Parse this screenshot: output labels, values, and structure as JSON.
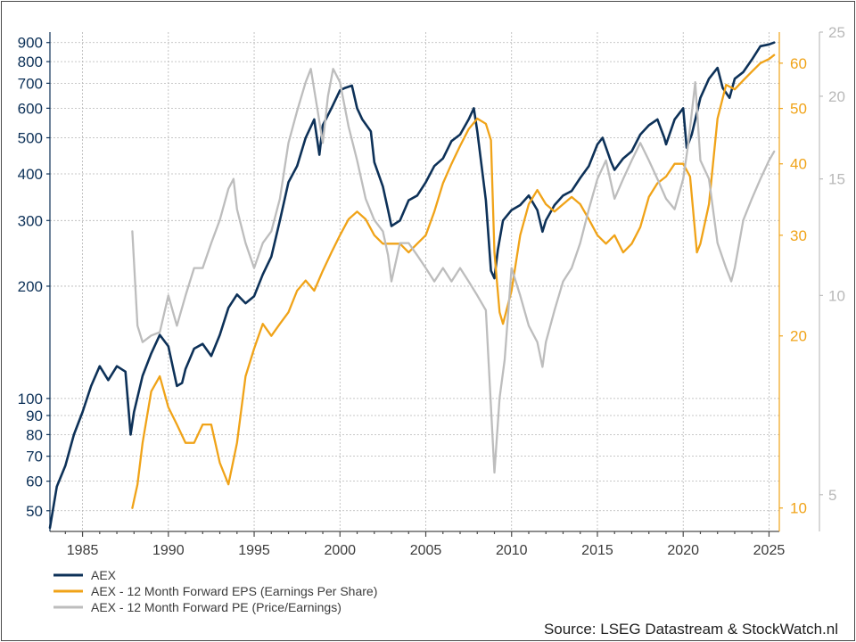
{
  "chart_data": {
    "type": "line",
    "x_ticks": [
      "1985",
      "1990",
      "1995",
      "2000",
      "2005",
      "2010",
      "2015",
      "2020",
      "2025"
    ],
    "x_range": [
      1983.1,
      2025.6
    ],
    "y_left": {
      "scale": "log",
      "range": [
        44,
        960
      ],
      "ticks": [
        "900",
        "800",
        "700",
        "600",
        "500",
        "400",
        "300",
        "200",
        "100",
        "90",
        "80",
        "70",
        "60",
        "50"
      ],
      "color": "#0d3158"
    },
    "y_right_eps": {
      "scale": "log",
      "range": [
        9.1,
        68
      ],
      "ticks": [
        "60",
        "50",
        "40",
        "30",
        "20",
        "10"
      ],
      "color": "#f0a318"
    },
    "y_right_pe": {
      "scale": "log",
      "range": [
        4.4,
        25
      ],
      "ticks": [
        "25",
        "20",
        "15",
        "10",
        "5"
      ],
      "color": "#bdbdbd"
    },
    "grid": true,
    "legend_position": "bottom-left",
    "legend": [
      {
        "label": "AEX",
        "color": "#0d3158"
      },
      {
        "label": "AEX - 12 Month Forward EPS (Earnings Per Share)",
        "color": "#f0a318"
      },
      {
        "label": "AEX - 12 Month Forward PE (Price/Earnings)",
        "color": "#bdbdbd"
      }
    ],
    "source": "Source: LSEG Datastream & StockWatch.nl",
    "series": [
      {
        "name": "AEX",
        "color": "#0d3158",
        "axis": "left",
        "x": [
          1983.1,
          1983.5,
          1984.0,
          1984.5,
          1985.0,
          1985.5,
          1986.0,
          1986.5,
          1987.0,
          1987.5,
          1987.8,
          1988.0,
          1988.5,
          1989.0,
          1989.5,
          1990.0,
          1990.5,
          1990.8,
          1991.0,
          1991.5,
          1992.0,
          1992.5,
          1993.0,
          1993.5,
          1994.0,
          1994.5,
          1995.0,
          1995.5,
          1996.0,
          1996.5,
          1997.0,
          1997.5,
          1998.0,
          1998.5,
          1998.8,
          1999.0,
          1999.5,
          2000.0,
          2000.3,
          2000.7,
          2001.0,
          2001.3,
          2001.8,
          2002.0,
          2002.5,
          2002.8,
          2003.0,
          2003.5,
          2004.0,
          2004.5,
          2005.0,
          2005.5,
          2006.0,
          2006.5,
          2007.0,
          2007.5,
          2007.8,
          2008.0,
          2008.5,
          2008.8,
          2009.0,
          2009.2,
          2009.5,
          2010.0,
          2010.5,
          2011.0,
          2011.5,
          2011.8,
          2012.0,
          2012.5,
          2013.0,
          2013.5,
          2014.0,
          2014.5,
          2015.0,
          2015.3,
          2015.8,
          2016.0,
          2016.5,
          2017.0,
          2017.5,
          2018.0,
          2018.5,
          2018.9,
          2019.0,
          2019.5,
          2020.0,
          2020.2,
          2020.5,
          2021.0,
          2021.5,
          2022.0,
          2022.3,
          2022.7,
          2023.0,
          2023.5,
          2024.0,
          2024.5,
          2025.0,
          2025.3
        ],
        "values": [
          45,
          58,
          66,
          80,
          92,
          108,
          122,
          112,
          122,
          118,
          80,
          92,
          115,
          132,
          148,
          138,
          108,
          110,
          120,
          136,
          140,
          130,
          148,
          175,
          190,
          180,
          188,
          215,
          240,
          300,
          380,
          420,
          500,
          560,
          450,
          540,
          600,
          670,
          680,
          690,
          600,
          560,
          520,
          430,
          370,
          320,
          290,
          300,
          340,
          350,
          380,
          420,
          440,
          490,
          510,
          560,
          600,
          520,
          340,
          220,
          210,
          250,
          300,
          320,
          330,
          350,
          320,
          280,
          300,
          330,
          350,
          360,
          390,
          420,
          480,
          500,
          430,
          410,
          440,
          460,
          510,
          540,
          560,
          500,
          480,
          560,
          600,
          470,
          510,
          640,
          720,
          770,
          680,
          640,
          720,
          750,
          810,
          880,
          890,
          900
        ]
      },
      {
        "name": "AEX - 12 Month Forward EPS (Earnings Per Share)",
        "color": "#f0a318",
        "axis": "right_eps",
        "x": [
          1987.9,
          1988.2,
          1988.5,
          1989.0,
          1989.5,
          1990.0,
          1990.5,
          1991.0,
          1991.5,
          1992.0,
          1992.5,
          1993.0,
          1993.5,
          1994.0,
          1994.5,
          1995.0,
          1995.5,
          1996.0,
          1996.5,
          1997.0,
          1997.5,
          1998.0,
          1998.5,
          1999.0,
          1999.5,
          2000.0,
          2000.5,
          2001.0,
          2001.5,
          2002.0,
          2002.5,
          2003.0,
          2003.5,
          2004.0,
          2004.5,
          2005.0,
          2005.5,
          2006.0,
          2006.5,
          2007.0,
          2007.5,
          2008.0,
          2008.5,
          2008.8,
          2009.0,
          2009.3,
          2009.5,
          2010.0,
          2010.5,
          2011.0,
          2011.5,
          2012.0,
          2012.5,
          2013.0,
          2013.5,
          2014.0,
          2014.5,
          2015.0,
          2015.5,
          2016.0,
          2016.5,
          2017.0,
          2017.5,
          2018.0,
          2018.5,
          2019.0,
          2019.5,
          2020.0,
          2020.4,
          2020.8,
          2021.0,
          2021.5,
          2022.0,
          2022.5,
          2023.0,
          2023.5,
          2024.0,
          2024.5,
          2025.0,
          2025.3
        ],
        "values": [
          10,
          11,
          13,
          16,
          17,
          15,
          14,
          13,
          13,
          14,
          14,
          12,
          11,
          13,
          17,
          19,
          21,
          20,
          21,
          22,
          24,
          25,
          24,
          26,
          28,
          30,
          32,
          33,
          32,
          30,
          29,
          29,
          29,
          28,
          29,
          30,
          33,
          37,
          40,
          43,
          46,
          48,
          47,
          44,
          28,
          22,
          21,
          24,
          30,
          34,
          36,
          34,
          33,
          34,
          35,
          34,
          32,
          30,
          29,
          30,
          28,
          29,
          31,
          35,
          37,
          38,
          40,
          40,
          38,
          28,
          29,
          34,
          48,
          55,
          54,
          56,
          58,
          60,
          61,
          62
        ]
      },
      {
        "name": "AEX - 12 Month Forward PE (Price/Earnings)",
        "color": "#bdbdbd",
        "axis": "right_pe",
        "x": [
          1987.9,
          1988.2,
          1988.5,
          1989.0,
          1989.5,
          1990.0,
          1990.5,
          1991.0,
          1991.5,
          1992.0,
          1992.5,
          1993.0,
          1993.5,
          1993.8,
          1994.0,
          1994.5,
          1995.0,
          1995.5,
          1996.0,
          1996.5,
          1997.0,
          1997.5,
          1998.0,
          1998.3,
          1998.7,
          1999.0,
          1999.3,
          1999.6,
          2000.0,
          2000.5,
          2001.0,
          2001.5,
          2002.0,
          2002.5,
          2002.8,
          2003.0,
          2003.5,
          2004.0,
          2004.5,
          2005.0,
          2005.5,
          2006.0,
          2006.5,
          2007.0,
          2007.5,
          2008.0,
          2008.5,
          2009.0,
          2009.3,
          2009.6,
          2010.0,
          2010.5,
          2011.0,
          2011.5,
          2011.8,
          2012.0,
          2012.5,
          2013.0,
          2013.5,
          2014.0,
          2014.5,
          2015.0,
          2015.5,
          2016.0,
          2016.5,
          2017.0,
          2017.5,
          2018.0,
          2018.5,
          2019.0,
          2019.5,
          2020.0,
          2020.3,
          2020.7,
          2021.0,
          2021.5,
          2022.0,
          2022.5,
          2022.8,
          2023.0,
          2023.5,
          2024.0,
          2024.5,
          2025.0,
          2025.3
        ],
        "values": [
          12.5,
          9,
          8.5,
          8.7,
          8.8,
          10,
          9,
          10,
          11,
          11,
          12,
          13,
          14.5,
          15,
          13.5,
          12,
          11,
          12,
          12.5,
          14,
          17,
          19,
          21,
          22,
          19,
          17,
          20,
          22,
          21,
          18,
          16,
          14,
          13,
          12.5,
          11.5,
          10.5,
          12,
          12,
          11.5,
          11,
          10.5,
          11,
          10.5,
          11,
          10.5,
          10,
          9.5,
          5.4,
          7,
          8,
          11,
          10,
          9,
          8.5,
          7.8,
          8.5,
          9.5,
          10.5,
          11,
          12,
          13.5,
          15,
          16,
          14,
          15,
          16,
          17,
          16,
          15,
          14,
          13.5,
          15,
          17,
          21,
          16,
          15,
          12,
          11,
          10.5,
          11,
          13,
          14,
          15,
          16,
          16.5
        ]
      }
    ]
  }
}
